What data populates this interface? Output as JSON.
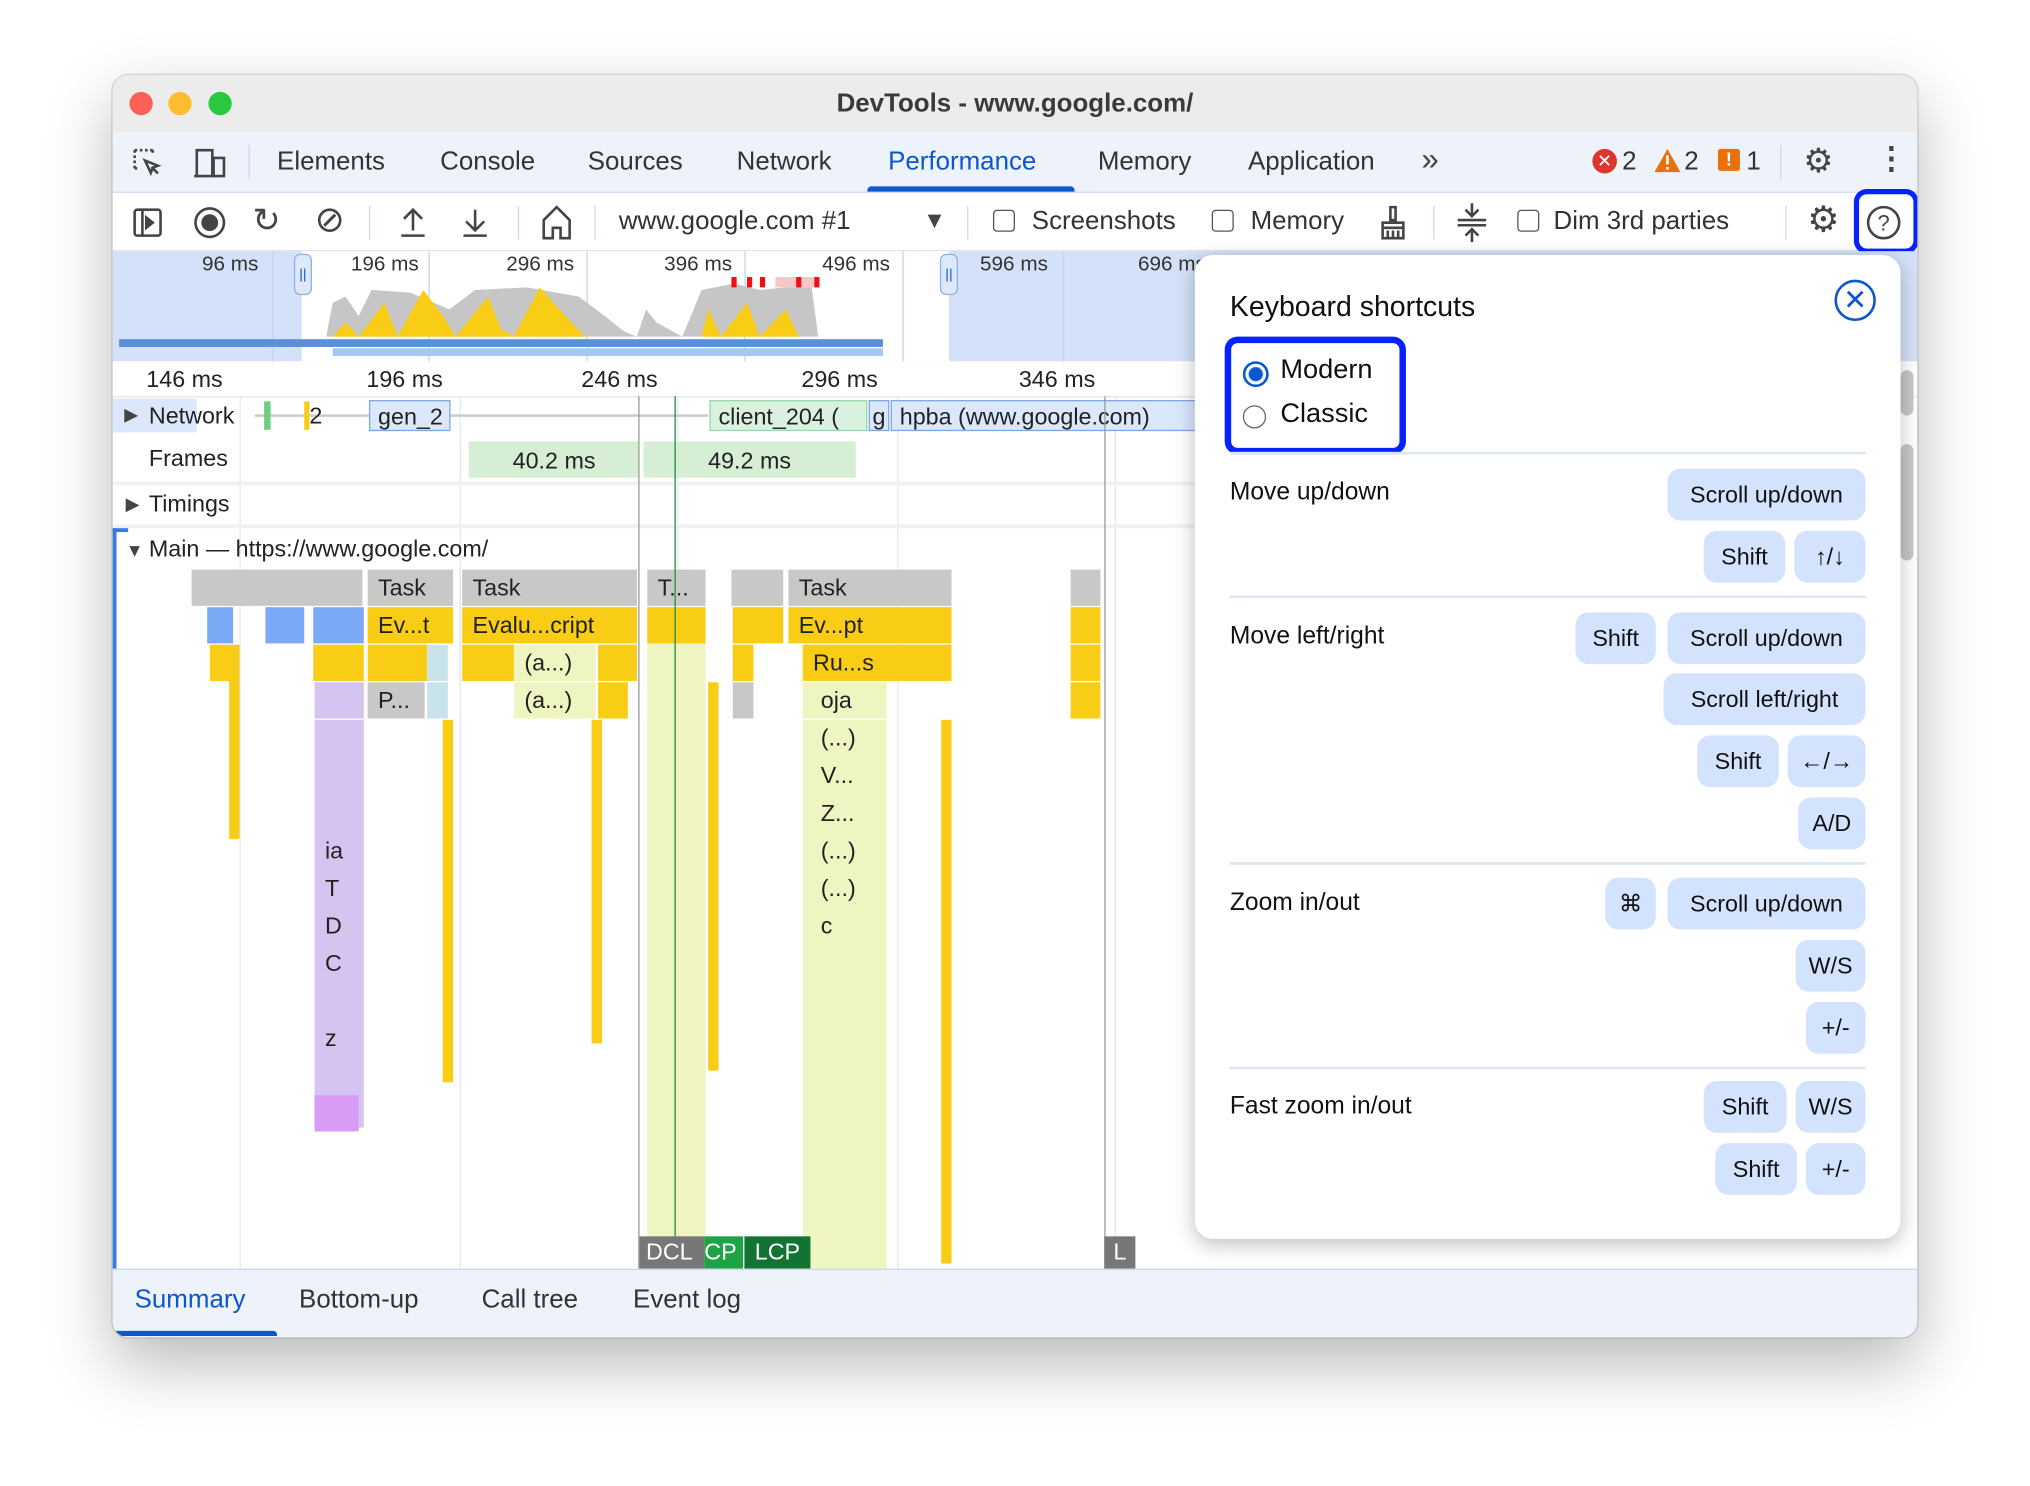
{
  "window": {
    "title": "DevTools - www.google.com/"
  },
  "tabs": [
    {
      "label": "Elements"
    },
    {
      "label": "Console"
    },
    {
      "label": "Sources"
    },
    {
      "label": "Network"
    },
    {
      "label": "Performance",
      "active": true
    },
    {
      "label": "Memory"
    },
    {
      "label": "Application"
    }
  ],
  "more_tabs_icon": "chevrons-right-icon",
  "badges": {
    "errors": "2",
    "warnings": "2",
    "issues": "1"
  },
  "toolbar": {
    "recording_select": "www.google.com #1",
    "screenshots_label": "Screenshots",
    "screenshots_checked": false,
    "memory_label": "Memory",
    "memory_checked": false,
    "dim_label": "Dim 3rd parties",
    "dim_checked": false
  },
  "overview": {
    "ticks": [
      "96 ms",
      "196 ms",
      "296 ms",
      "396 ms",
      "496 ms",
      "596 ms",
      "696 ms"
    ]
  },
  "ruler": {
    "ticks": [
      "146 ms",
      "196 ms",
      "246 ms",
      "296 ms",
      "346 ms"
    ]
  },
  "tracks": {
    "network": {
      "label": "Network",
      "requests": [
        "gen_2",
        "client_204 (",
        "g",
        "hpba (www.google.com)",
        "2"
      ]
    },
    "frames": {
      "label": "Frames",
      "items": [
        "40.2 ms",
        "49.2 ms"
      ]
    },
    "timings": {
      "label": "Timings"
    },
    "main": {
      "label": "Main — https://www.google.com/"
    }
  },
  "flame": {
    "labels": [
      "Task",
      "Task",
      "T...",
      "Task",
      "Ev...t",
      "Evalu...cript",
      "Ev...pt",
      "(a...)",
      "Ru...s",
      "P...",
      "(a...)",
      "oja",
      "(...)",
      "V...",
      "Z...",
      "ia",
      "(...)",
      "T",
      "(...)",
      "D",
      "c",
      "C",
      "z"
    ]
  },
  "markers": [
    "DCL",
    "CP",
    "LCP",
    "L"
  ],
  "bottom_tabs": [
    {
      "label": "Summary",
      "active": true
    },
    {
      "label": "Bottom-up"
    },
    {
      "label": "Call tree"
    },
    {
      "label": "Event log"
    }
  ],
  "shortcuts": {
    "title": "Keyboard shortcuts",
    "modes": [
      {
        "label": "Modern",
        "selected": true
      },
      {
        "label": "Classic",
        "selected": false
      }
    ],
    "sections": [
      {
        "label": "Move up/down",
        "keys": [
          "Scroll up/down",
          "Shift",
          "↑/↓"
        ]
      },
      {
        "label": "Move left/right",
        "keys": [
          "Shift",
          "Scroll up/down",
          "Scroll left/right",
          "Shift",
          "←/→",
          "A/D"
        ]
      },
      {
        "label": "Zoom in/out",
        "keys": [
          "⌘",
          "Scroll up/down",
          "W/S",
          "+/-"
        ]
      },
      {
        "label": "Fast zoom in/out",
        "keys": [
          "Shift",
          "W/S",
          "Shift",
          "+/-"
        ]
      }
    ]
  },
  "colors": {
    "accent": "#0b57d0",
    "highlight": "#0522ff",
    "task": "#c8c8c8",
    "scripting": "#f9cc16",
    "key_bg": "#d3e3fd"
  }
}
